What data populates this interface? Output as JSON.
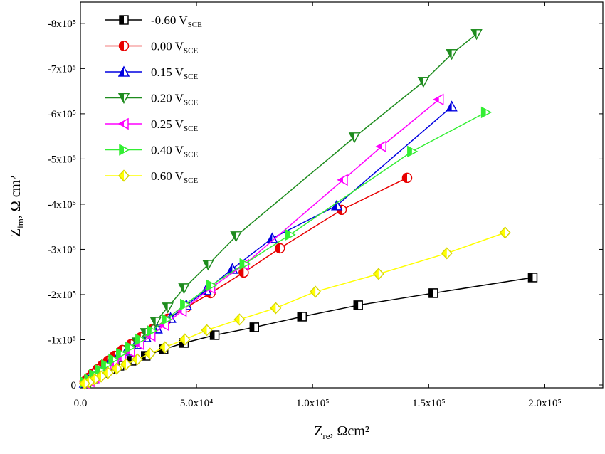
{
  "chart_data": {
    "type": "scatter",
    "xlabel": [
      "Z",
      "re",
      ", Ωcm²"
    ],
    "ylabel": [
      "Z",
      "im",
      ", Ω cm²"
    ],
    "xlim": [
      0,
      225000
    ],
    "ylim": [
      6300,
      -847000
    ],
    "xticks": [
      {
        "value": 0,
        "label": "0.0"
      },
      {
        "value": 50000,
        "label": "5.0x10⁴"
      },
      {
        "value": 100000,
        "label": "1.0x10⁵"
      },
      {
        "value": 150000,
        "label": "1.5x10⁵"
      },
      {
        "value": 200000,
        "label": "2.0x10⁵"
      }
    ],
    "yticks": [
      0,
      {
        "value": -100000,
        "label": "-1x10⁵"
      },
      {
        "value": -200000,
        "label": "-2x10⁵"
      },
      {
        "value": -300000,
        "label": "-3x10⁵"
      },
      {
        "value": -400000,
        "label": "-4x10⁵"
      },
      {
        "value": -500000,
        "label": "-5x10⁵"
      },
      {
        "value": -600000,
        "label": "-6x10⁵"
      },
      {
        "value": -700000,
        "label": "-7x10⁵"
      },
      {
        "value": -800000,
        "label": "-8x10⁵"
      }
    ],
    "legend": "upper left",
    "series": [
      {
        "name": "-0.60 VSCE",
        "color": "#000000",
        "marker": "square",
        "x": [
          194800,
          152000,
          119600,
          95400,
          74900,
          57800,
          44600,
          35800,
          28100,
          22000,
          16800,
          12800,
          9800,
          7300,
          5200,
          3400,
          1800
        ],
        "values": [
          -237800,
          -203200,
          -176400,
          -151200,
          -127600,
          -110200,
          -92900,
          -78800,
          -64600,
          -53600,
          -42500,
          -34700,
          -26800,
          -20500,
          -14200,
          -9500,
          -4700
        ]
      },
      {
        "name": "0.00 VSCE",
        "color": "#e80000",
        "marker": "circle",
        "x": [
          140700,
          112500,
          85900,
          70300,
          56000,
          45600,
          37600,
          30900,
          26000,
          21700,
          18000,
          14700,
          11900,
          9500,
          7300,
          5200,
          3400,
          1800
        ],
        "values": [
          -458300,
          -387500,
          -302400,
          -248900,
          -203200,
          -171700,
          -146500,
          -122900,
          -105500,
          -89800,
          -77200,
          -64600,
          -53600,
          -44100,
          -34700,
          -25200,
          -15800,
          -7900
        ]
      },
      {
        "name": "0.15 VSCE",
        "color": "#0000e0",
        "marker": "triangle-up",
        "x": [
          159900,
          110400,
          82600,
          65400,
          54100,
          45600,
          38800,
          33000,
          28100,
          23900,
          19900,
          16200,
          12800,
          10100,
          7300,
          5200,
          3400,
          1800
        ],
        "values": [
          -615800,
          -396900,
          -324500,
          -256700,
          -209500,
          -176400,
          -148100,
          -124500,
          -105500,
          -89800,
          -75600,
          -63000,
          -50400,
          -39400,
          -28400,
          -18900,
          -11000,
          -4700
        ]
      },
      {
        "name": "0.20 VSCE",
        "color": "#1e8c1e",
        "marker": "triangle-down",
        "x": [
          170600,
          159900,
          147700,
          118000,
          67000,
          55000,
          44600,
          37600,
          32400,
          28100,
          24500,
          21100,
          18000,
          15300,
          12500,
          10100,
          7600,
          4300
        ],
        "values": [
          -776500,
          -732400,
          -671000,
          -548100,
          -329200,
          -266200,
          -214200,
          -171700,
          -140200,
          -115000,
          -94500,
          -77200,
          -63000,
          -48800,
          -36200,
          -25200,
          -15800,
          -6300
        ]
      },
      {
        "name": "0.25 VSCE",
        "color": "#ff00ff",
        "marker": "triangle-left",
        "x": [
          154400,
          129700,
          113100,
          70600,
          56000,
          43700,
          36100,
          30300,
          25400,
          21400,
          17700,
          14400,
          11300,
          8600,
          6100,
          4000,
          2100
        ],
        "values": [
          -631600,
          -527600,
          -453600,
          -266200,
          -214200,
          -163800,
          -132300,
          -108700,
          -89800,
          -74000,
          -59900,
          -47300,
          -36200,
          -25200,
          -15800,
          -7900,
          -3200
        ]
      },
      {
        "name": "0.40 VSCE",
        "color": "#33ee33",
        "marker": "triangle-right",
        "x": [
          174600,
          142800,
          90200,
          70600,
          56300,
          45000,
          37000,
          30600,
          25700,
          21400,
          17400,
          14100,
          11000,
          8300,
          5800,
          3700,
          1800
        ],
        "values": [
          -603200,
          -516600,
          -332300,
          -267700,
          -220500,
          -178000,
          -144900,
          -119700,
          -100800,
          -83500,
          -69300,
          -56700,
          -44100,
          -33100,
          -22100,
          -12600,
          -6300
        ]
      },
      {
        "name": "0.60 VSCE",
        "color": "#ffff00",
        "marker": "diamond",
        "x": [
          182900,
          157800,
          128400,
          101200,
          84100,
          68500,
          54400,
          45000,
          36400,
          30000,
          24500,
          19600,
          15600,
          11900,
          8900,
          6100,
          3700,
          1800
        ],
        "values": [
          -337100,
          -291400,
          -245700,
          -206300,
          -170100,
          -144900,
          -121300,
          -100800,
          -83500,
          -69300,
          -56700,
          -45700,
          -36200,
          -26800,
          -18900,
          -12600,
          -6300,
          -3200
        ]
      }
    ]
  }
}
